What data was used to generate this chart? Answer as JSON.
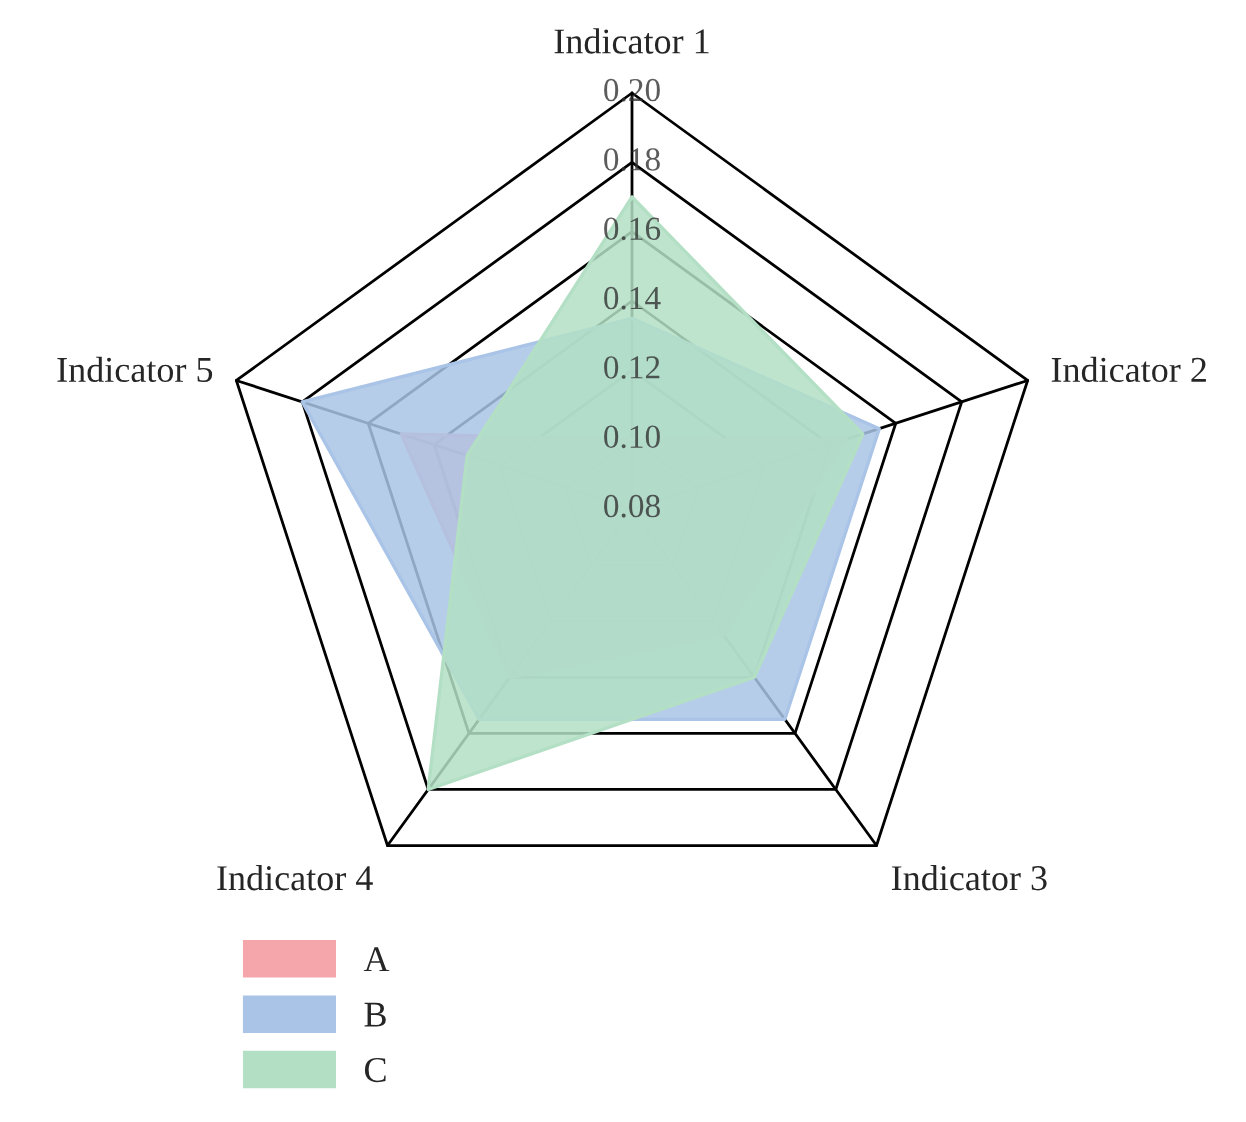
{
  "chart_data": {
    "type": "radar",
    "categories": [
      "Indicator 1",
      "Indicator 2",
      "Indicator 3",
      "Indicator 4",
      "Indicator 5"
    ],
    "ylim": [
      0.08,
      0.2
    ],
    "yticks": [
      0.08,
      {
        "value": 0.1,
        "label": "0.10"
      },
      0.12,
      0.14,
      0.16,
      0.18,
      {
        "value": 0.2,
        "label": "0.20"
      }
    ],
    "legend": "bottom left",
    "series": [
      {
        "name": "A",
        "color": "#f4a6ab",
        "values": [
          0.1,
          0.145,
          0.125,
          0.14,
          0.15
        ]
      },
      {
        "name": "B",
        "color": "#a9c4e6",
        "values": [
          0.135,
          0.155,
          0.155,
          0.155,
          0.18
        ]
      },
      {
        "name": "C",
        "color": "#b3dfc5",
        "values": [
          0.17,
          0.15,
          0.14,
          0.18,
          0.13
        ]
      }
    ]
  }
}
